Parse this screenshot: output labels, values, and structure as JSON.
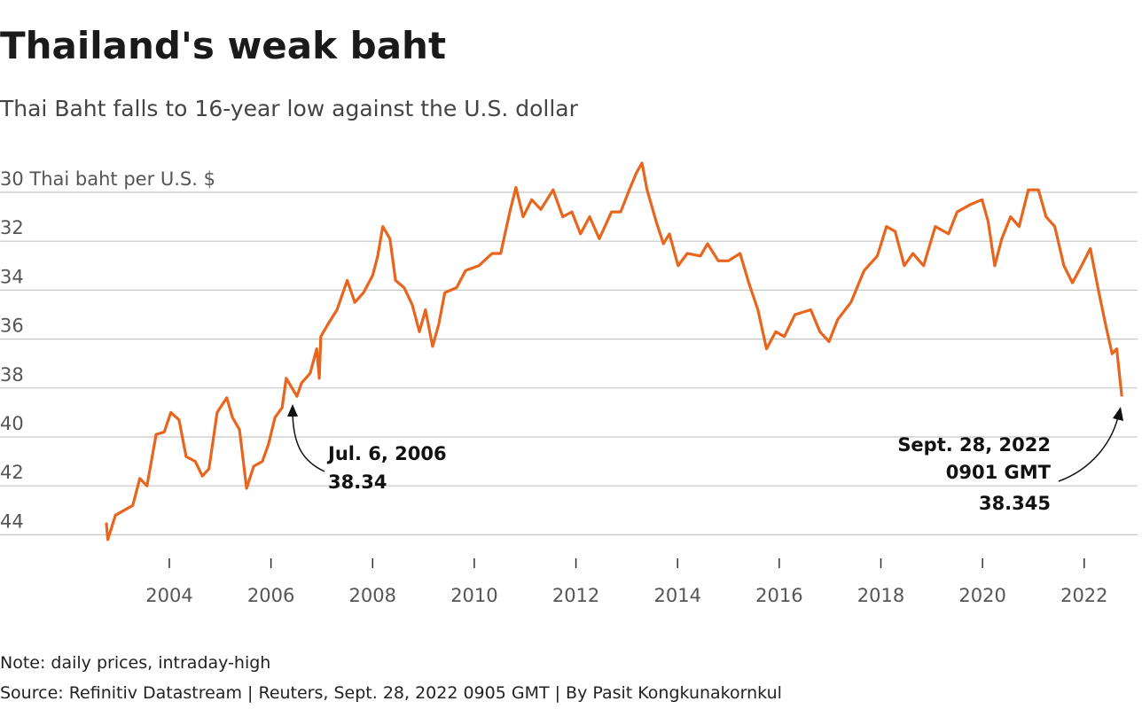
{
  "chart_data": {
    "type": "line",
    "title": "Thailand's weak baht",
    "subtitle": "Thai Baht falls to 16-year low against the U.S. dollar",
    "y_inverted": true,
    "xlim": [
      2001.75,
      2023.05
    ],
    "xticks": [
      2004,
      2006,
      2008,
      2010,
      2012,
      2014,
      2016,
      2018,
      2020,
      2022
    ],
    "ylim": [
      28.5,
      44.5
    ],
    "yticks": [
      {
        "value": 30,
        "label": "30 Thai baht per U.S. $"
      },
      32,
      34,
      36,
      38,
      40,
      42,
      44
    ],
    "grid": true,
    "series": [
      {
        "name": "Thai baht per U.S. dollar",
        "color": "#e8651d",
        "x": [
          2002.76,
          2002.79,
          2002.94,
          2003.11,
          2003.28,
          2003.42,
          2003.56,
          2003.74,
          2003.9,
          2004.03,
          2004.19,
          2004.33,
          2004.51,
          2004.65,
          2004.78,
          2004.94,
          2005.13,
          2005.24,
          2005.38,
          2005.52,
          2005.66,
          2005.83,
          2005.95,
          2006.08,
          2006.22,
          2006.3,
          2006.51,
          2006.6,
          2006.77,
          2006.9,
          2006.95,
          2006.98,
          2007.12,
          2007.3,
          2007.5,
          2007.65,
          2007.82,
          2008.0,
          2008.1,
          2008.2,
          2008.34,
          2008.45,
          2008.62,
          2008.78,
          2008.92,
          2009.04,
          2009.18,
          2009.3,
          2009.42,
          2009.65,
          2009.83,
          2010.09,
          2010.35,
          2010.52,
          2010.7,
          2010.82,
          2010.96,
          2011.13,
          2011.31,
          2011.55,
          2011.74,
          2011.92,
          2012.09,
          2012.27,
          2012.46,
          2012.7,
          2012.88,
          2013.05,
          2013.19,
          2013.3,
          2013.4,
          2013.58,
          2013.72,
          2013.84,
          2014.01,
          2014.19,
          2014.45,
          2014.59,
          2014.8,
          2015.0,
          2015.23,
          2015.4,
          2015.58,
          2015.75,
          2015.93,
          2016.1,
          2016.31,
          2016.62,
          2016.8,
          2016.98,
          2017.15,
          2017.41,
          2017.67,
          2017.93,
          2018.11,
          2018.28,
          2018.46,
          2018.63,
          2018.84,
          2019.07,
          2019.33,
          2019.5,
          2019.76,
          2019.99,
          2020.11,
          2020.24,
          2020.38,
          2020.55,
          2020.72,
          2020.9,
          2021.1,
          2021.25,
          2021.42,
          2021.6,
          2021.77,
          2021.95,
          2022.12,
          2022.29,
          2022.43,
          2022.55,
          2022.64,
          2022.74
        ],
        "values": [
          43.5,
          44.2,
          43.2,
          43.0,
          42.8,
          41.7,
          42.0,
          39.9,
          39.8,
          39.0,
          39.3,
          40.8,
          41.0,
          41.6,
          41.3,
          39.0,
          38.4,
          39.2,
          39.7,
          42.1,
          41.2,
          41.0,
          40.3,
          39.2,
          38.8,
          37.6,
          38.34,
          37.8,
          37.4,
          36.4,
          37.6,
          35.9,
          35.4,
          34.8,
          33.6,
          34.5,
          34.1,
          33.4,
          32.6,
          31.4,
          31.9,
          33.6,
          33.9,
          34.6,
          35.7,
          34.8,
          36.3,
          35.4,
          34.1,
          33.9,
          33.2,
          33.0,
          32.5,
          32.5,
          30.8,
          29.8,
          31.0,
          30.3,
          30.7,
          29.9,
          31.0,
          30.8,
          31.7,
          31.0,
          31.9,
          30.8,
          30.8,
          29.9,
          29.2,
          28.8,
          29.9,
          31.2,
          32.1,
          31.7,
          33.0,
          32.5,
          32.6,
          32.1,
          32.8,
          32.8,
          32.5,
          33.7,
          34.8,
          36.4,
          35.7,
          35.9,
          35.0,
          34.8,
          35.7,
          36.1,
          35.2,
          34.5,
          33.2,
          32.6,
          31.4,
          31.6,
          33.0,
          32.5,
          33.0,
          31.4,
          31.7,
          30.8,
          30.5,
          30.3,
          31.2,
          33.0,
          31.9,
          31.0,
          31.4,
          29.9,
          29.9,
          31.0,
          31.4,
          33.0,
          33.7,
          33.0,
          32.3,
          34.1,
          35.5,
          36.6,
          36.4,
          38.345
        ]
      }
    ],
    "annotations": [
      [
        "Jul. 6, 2006",
        "38.34"
      ],
      [
        "Sept. 28, 2022",
        "0901 GMT",
        "38.345"
      ]
    ],
    "notes": [
      "Note: daily prices, intraday-high",
      "Source: Refinitiv Datastream | Reuters, Sept. 28, 2022 0905 GMT | By Pasit Kongkunakornkul"
    ]
  }
}
